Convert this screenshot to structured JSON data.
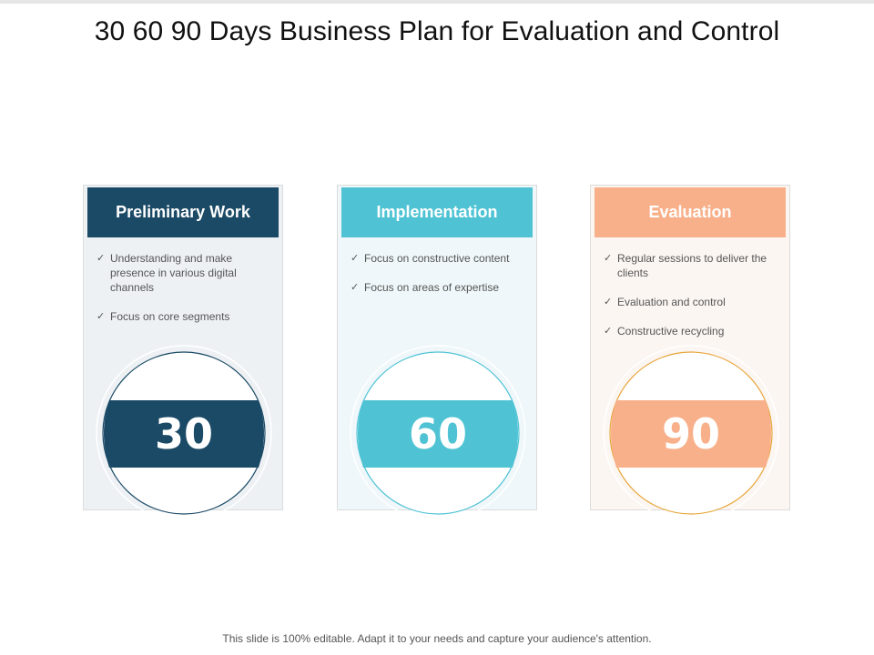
{
  "slide": {
    "title": "30 60 90 Days Business Plan for Evaluation and Control",
    "footer": "This slide is 100% editable. Adapt it to your needs and capture your audience's attention."
  },
  "check_glyph": "✓",
  "cards": [
    {
      "heading": "Preliminary Work",
      "number": "30",
      "color": "#1b4a66",
      "background": "#edf1f4",
      "items": [
        "Understanding  and make presence  in various  digital channels",
        "Focus on core segments"
      ]
    },
    {
      "heading": "Implementation",
      "number": "60",
      "color": "#4fc3d4",
      "background": "#eff7fa",
      "items": [
        "Focus on constructive content",
        "Focus on areas of expertise"
      ]
    },
    {
      "heading": "Evaluation",
      "number": "90",
      "color": "#f8b08a",
      "background": "#fcf6f2",
      "items": [
        "Regular  sessions to deliver the clients",
        "Evaluation  and control",
        "Constructive  recycling"
      ],
      "ring_color": "#e8a63c"
    }
  ]
}
